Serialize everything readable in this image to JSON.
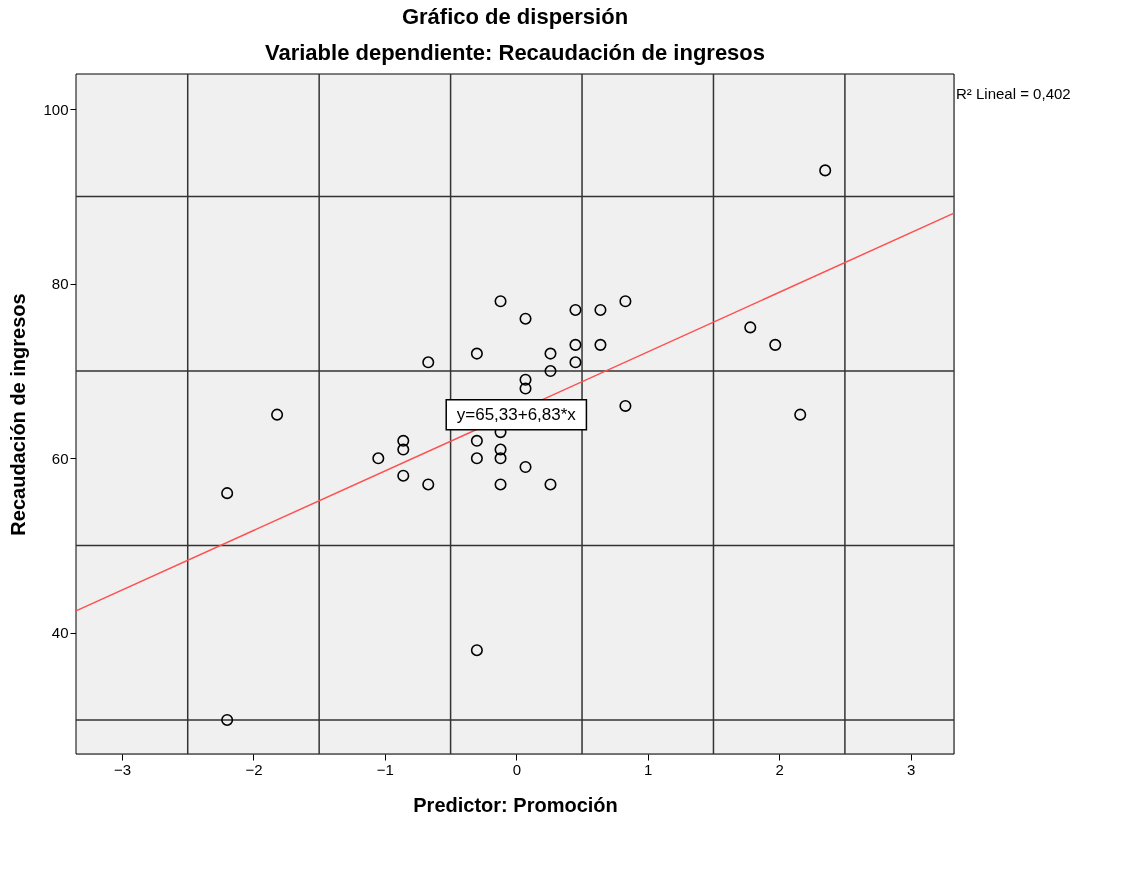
{
  "chart_data": {
    "type": "scatter",
    "title": "Gráfico de dispersión",
    "subtitle": "Variable dependiente: Recaudación de ingresos",
    "xlabel": "Predictor: Promoción",
    "ylabel": "Recaudación de ingresos",
    "xlim": [
      -3.35,
      3.33
    ],
    "ylim": [
      26.1,
      104.05
    ],
    "xticks": [
      -3,
      -2,
      -1,
      0,
      1,
      2,
      3
    ],
    "yticks": [
      40,
      60,
      80,
      100
    ],
    "marker": "circle",
    "series": [
      {
        "color": "#000000",
        "x": [
          -2.2,
          -2.2,
          -1.82,
          -1.05,
          -0.86,
          -0.86,
          -0.86,
          -0.67,
          -0.67,
          -0.3,
          -0.3,
          -0.3,
          -0.3,
          -0.12,
          -0.12,
          -0.12,
          -0.12,
          -0.12,
          0.07,
          0.07,
          0.07,
          0.07,
          0.26,
          0.26,
          0.26,
          0.45,
          0.45,
          0.45,
          0.64,
          0.64,
          0.83,
          0.83,
          1.78,
          1.97,
          2.16,
          2.35
        ],
        "values": [
          56,
          30,
          65,
          60,
          62,
          61,
          58,
          71,
          57,
          72,
          62,
          60,
          38,
          78,
          63,
          61,
          60,
          57,
          76,
          69,
          68,
          59,
          72,
          70,
          57,
          77,
          73,
          71,
          77,
          73,
          78,
          66,
          75,
          73,
          65,
          93
        ]
      },
      {
        "type": "line",
        "color": "#ff5050",
        "marker": "none",
        "line_style": "solid",
        "x": [
          -3.35,
          3.33
        ],
        "values": [
          42.5,
          88.1
        ]
      }
    ],
    "ref_lines": [
      {
        "axis": "x",
        "value": -2.5,
        "color": "#333333"
      },
      {
        "axis": "x",
        "value": -1.5,
        "color": "#333333"
      },
      {
        "axis": "x",
        "value": -0.5,
        "color": "#333333"
      },
      {
        "axis": "x",
        "value": 0.5,
        "color": "#333333"
      },
      {
        "axis": "x",
        "value": 1.5,
        "color": "#333333"
      },
      {
        "axis": "x",
        "value": 2.5,
        "color": "#333333"
      },
      {
        "axis": "y",
        "value": 30,
        "color": "#333333"
      },
      {
        "axis": "y",
        "value": 50,
        "color": "#333333"
      },
      {
        "axis": "y",
        "value": 70,
        "color": "#333333"
      },
      {
        "axis": "y",
        "value": 90,
        "color": "#333333"
      }
    ],
    "annotations": [
      {
        "text": "y=65,33+6,83*x",
        "x": 0,
        "y": 65
      },
      "R² Lineal = 0,402"
    ]
  }
}
